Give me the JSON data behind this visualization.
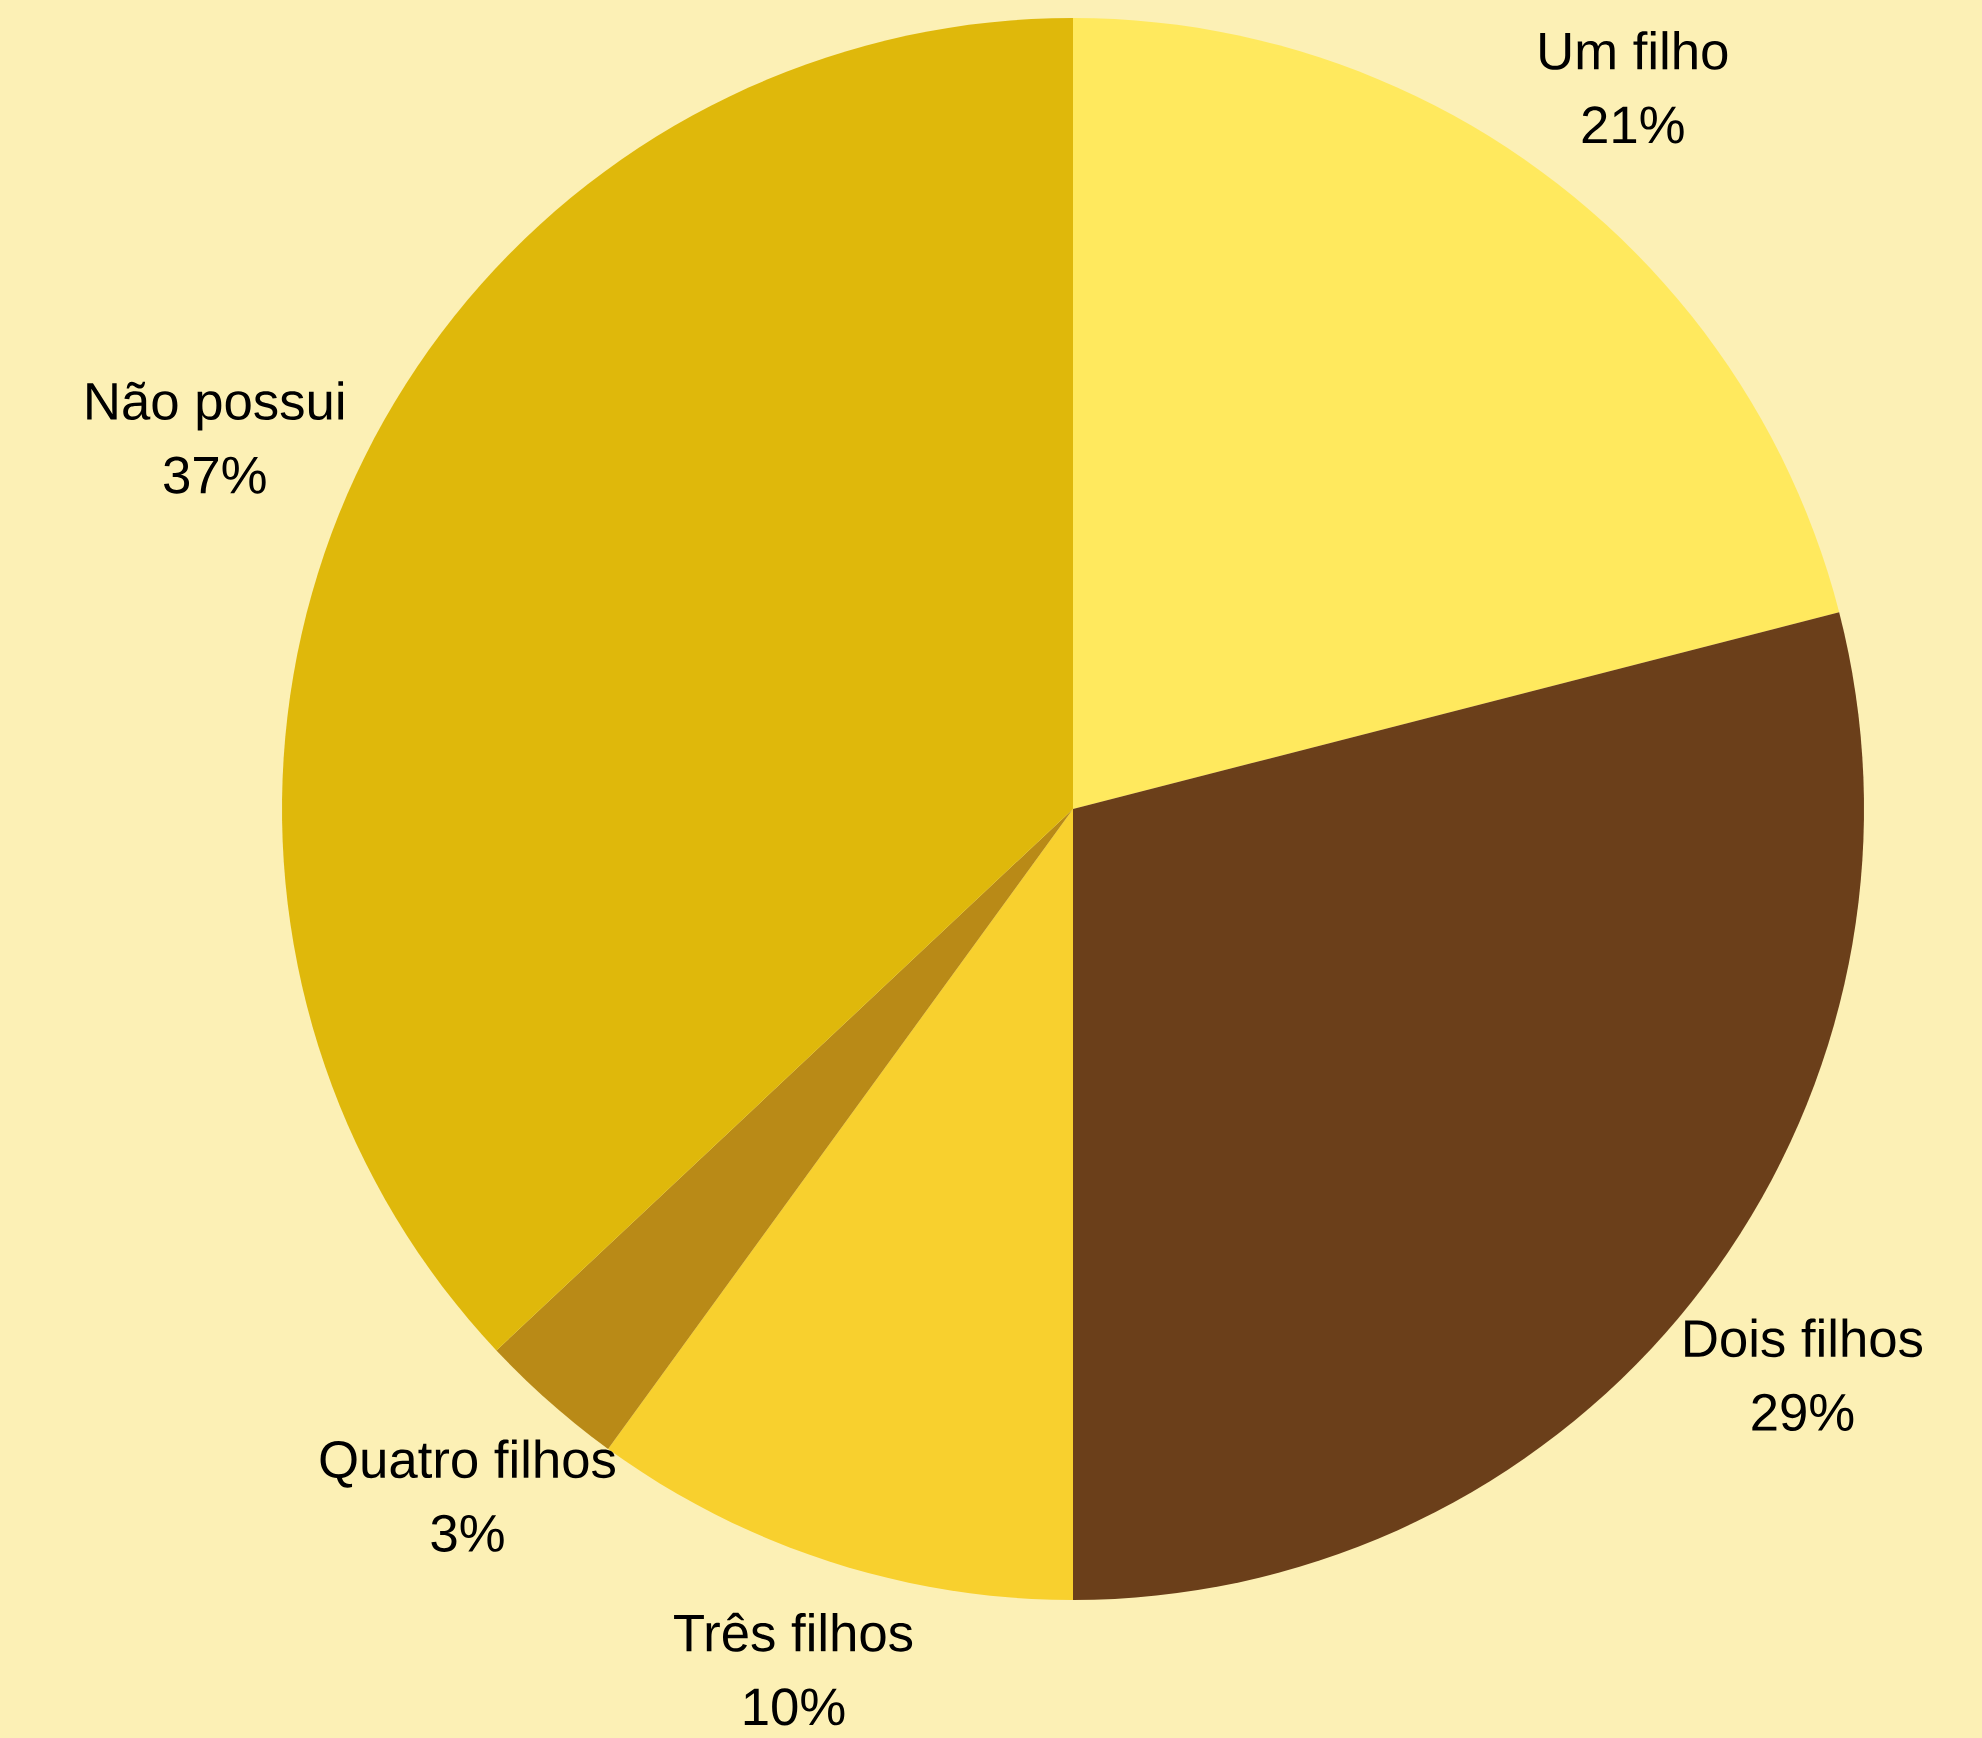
{
  "chart_data": {
    "type": "pie",
    "categories": [
      "Um filho",
      "Dois filhos",
      "Três filhos",
      "Quatro filhos",
      "Não possui"
    ],
    "values": [
      21,
      29,
      10,
      3,
      37
    ],
    "value_labels": [
      "21%",
      "29%",
      "10%",
      "3%",
      "37%"
    ],
    "colors": [
      "#ffe95e",
      "#6b3f1a",
      "#f8d02e",
      "#b98a17",
      "#dfb80b"
    ]
  }
}
